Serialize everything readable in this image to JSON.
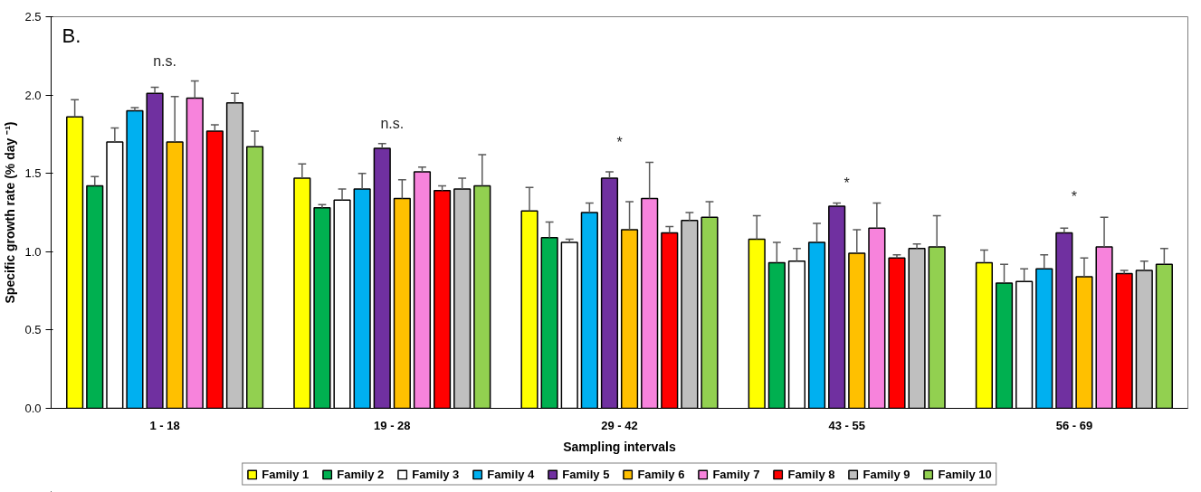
{
  "chart_data": {
    "type": "bar",
    "xlabel": "Sampling intervals",
    "ylabel": "Specific growth rate (% day ⁻¹)",
    "categories": [
      "1 - 18",
      "19 - 28",
      "29 - 42",
      "43 - 55",
      "56 - 69"
    ],
    "series": [
      {
        "name": "Family 1",
        "color": "#ffff00",
        "values": [
          1.86,
          1.47,
          1.26,
          1.08,
          0.93
        ],
        "errors": [
          [
            1.86,
            1.97
          ],
          [
            1.47,
            1.56
          ],
          [
            1.26,
            1.41
          ],
          [
            1.08,
            1.23
          ],
          [
            0.93,
            1.01
          ]
        ]
      },
      {
        "name": "Family 2",
        "color": "#00b050",
        "values": [
          1.42,
          1.28,
          1.09,
          0.93,
          0.8
        ],
        "errors": [
          [
            1.42,
            1.48
          ],
          [
            1.28,
            1.3
          ],
          [
            1.09,
            1.19
          ],
          [
            0.93,
            1.06
          ],
          [
            0.8,
            0.92
          ]
        ]
      },
      {
        "name": "Family 3",
        "color": "#ffffff",
        "values": [
          1.7,
          1.33,
          1.06,
          0.94,
          0.81
        ],
        "errors": [
          [
            1.7,
            1.79
          ],
          [
            1.33,
            1.4
          ],
          [
            1.06,
            1.08
          ],
          [
            0.94,
            1.02
          ],
          [
            0.81,
            0.89
          ]
        ]
      },
      {
        "name": "Family 4",
        "color": "#00b0f0",
        "values": [
          1.9,
          1.4,
          1.25,
          1.06,
          0.89
        ],
        "errors": [
          [
            1.9,
            1.92
          ],
          [
            1.4,
            1.5
          ],
          [
            1.25,
            1.31
          ],
          [
            1.06,
            1.18
          ],
          [
            0.89,
            0.98
          ]
        ]
      },
      {
        "name": "Family 5",
        "color": "#7030a0",
        "values": [
          2.01,
          1.66,
          1.47,
          1.29,
          1.12
        ],
        "errors": [
          [
            2.01,
            2.05
          ],
          [
            1.66,
            1.69
          ],
          [
            1.47,
            1.51
          ],
          [
            1.29,
            1.31
          ],
          [
            1.12,
            1.15
          ]
        ]
      },
      {
        "name": "Family 6",
        "color": "#ffc000",
        "values": [
          1.7,
          1.34,
          1.14,
          0.99,
          0.84
        ],
        "errors": [
          [
            1.7,
            1.99
          ],
          [
            1.34,
            1.46
          ],
          [
            1.14,
            1.32
          ],
          [
            0.99,
            1.14
          ],
          [
            0.84,
            0.96
          ]
        ]
      },
      {
        "name": "Family 7",
        "color": "#f783dc",
        "values": [
          1.98,
          1.51,
          1.34,
          1.15,
          1.03
        ],
        "errors": [
          [
            1.98,
            2.09
          ],
          [
            1.51,
            1.54
          ],
          [
            1.34,
            1.57
          ],
          [
            1.15,
            1.31
          ],
          [
            1.03,
            1.22
          ]
        ]
      },
      {
        "name": "Family 8",
        "color": "#ff0000",
        "values": [
          1.77,
          1.39,
          1.12,
          0.96,
          0.86
        ],
        "errors": [
          [
            1.77,
            1.81
          ],
          [
            1.39,
            1.42
          ],
          [
            1.12,
            1.16
          ],
          [
            0.96,
            0.98
          ],
          [
            0.86,
            0.88
          ]
        ]
      },
      {
        "name": "Family 9",
        "color": "#bfbfbf",
        "values": [
          1.95,
          1.4,
          1.2,
          1.02,
          0.88
        ],
        "errors": [
          [
            1.95,
            2.01
          ],
          [
            1.4,
            1.47
          ],
          [
            1.2,
            1.25
          ],
          [
            1.02,
            1.05
          ],
          [
            0.88,
            0.94
          ]
        ]
      },
      {
        "name": "Family 10",
        "color": "#92d050",
        "values": [
          1.67,
          1.42,
          1.22,
          1.03,
          0.92
        ],
        "errors": [
          [
            1.67,
            1.77
          ],
          [
            1.42,
            1.62
          ],
          [
            1.22,
            1.32
          ],
          [
            1.03,
            1.23
          ],
          [
            0.92,
            1.02
          ]
        ]
      }
    ],
    "ylim": [
      0,
      2.5
    ],
    "yticks": [
      {
        "value": 0,
        "label": "0.0"
      },
      0.5,
      {
        "value": 1,
        "label": "1.0"
      },
      1.5,
      {
        "value": 2,
        "label": "2.0"
      },
      2.5
    ],
    "grid": false,
    "legend": "bottom",
    "annotations": [
      "B.",
      "n.s.",
      "n.s.",
      "*",
      "*",
      "*"
    ]
  }
}
